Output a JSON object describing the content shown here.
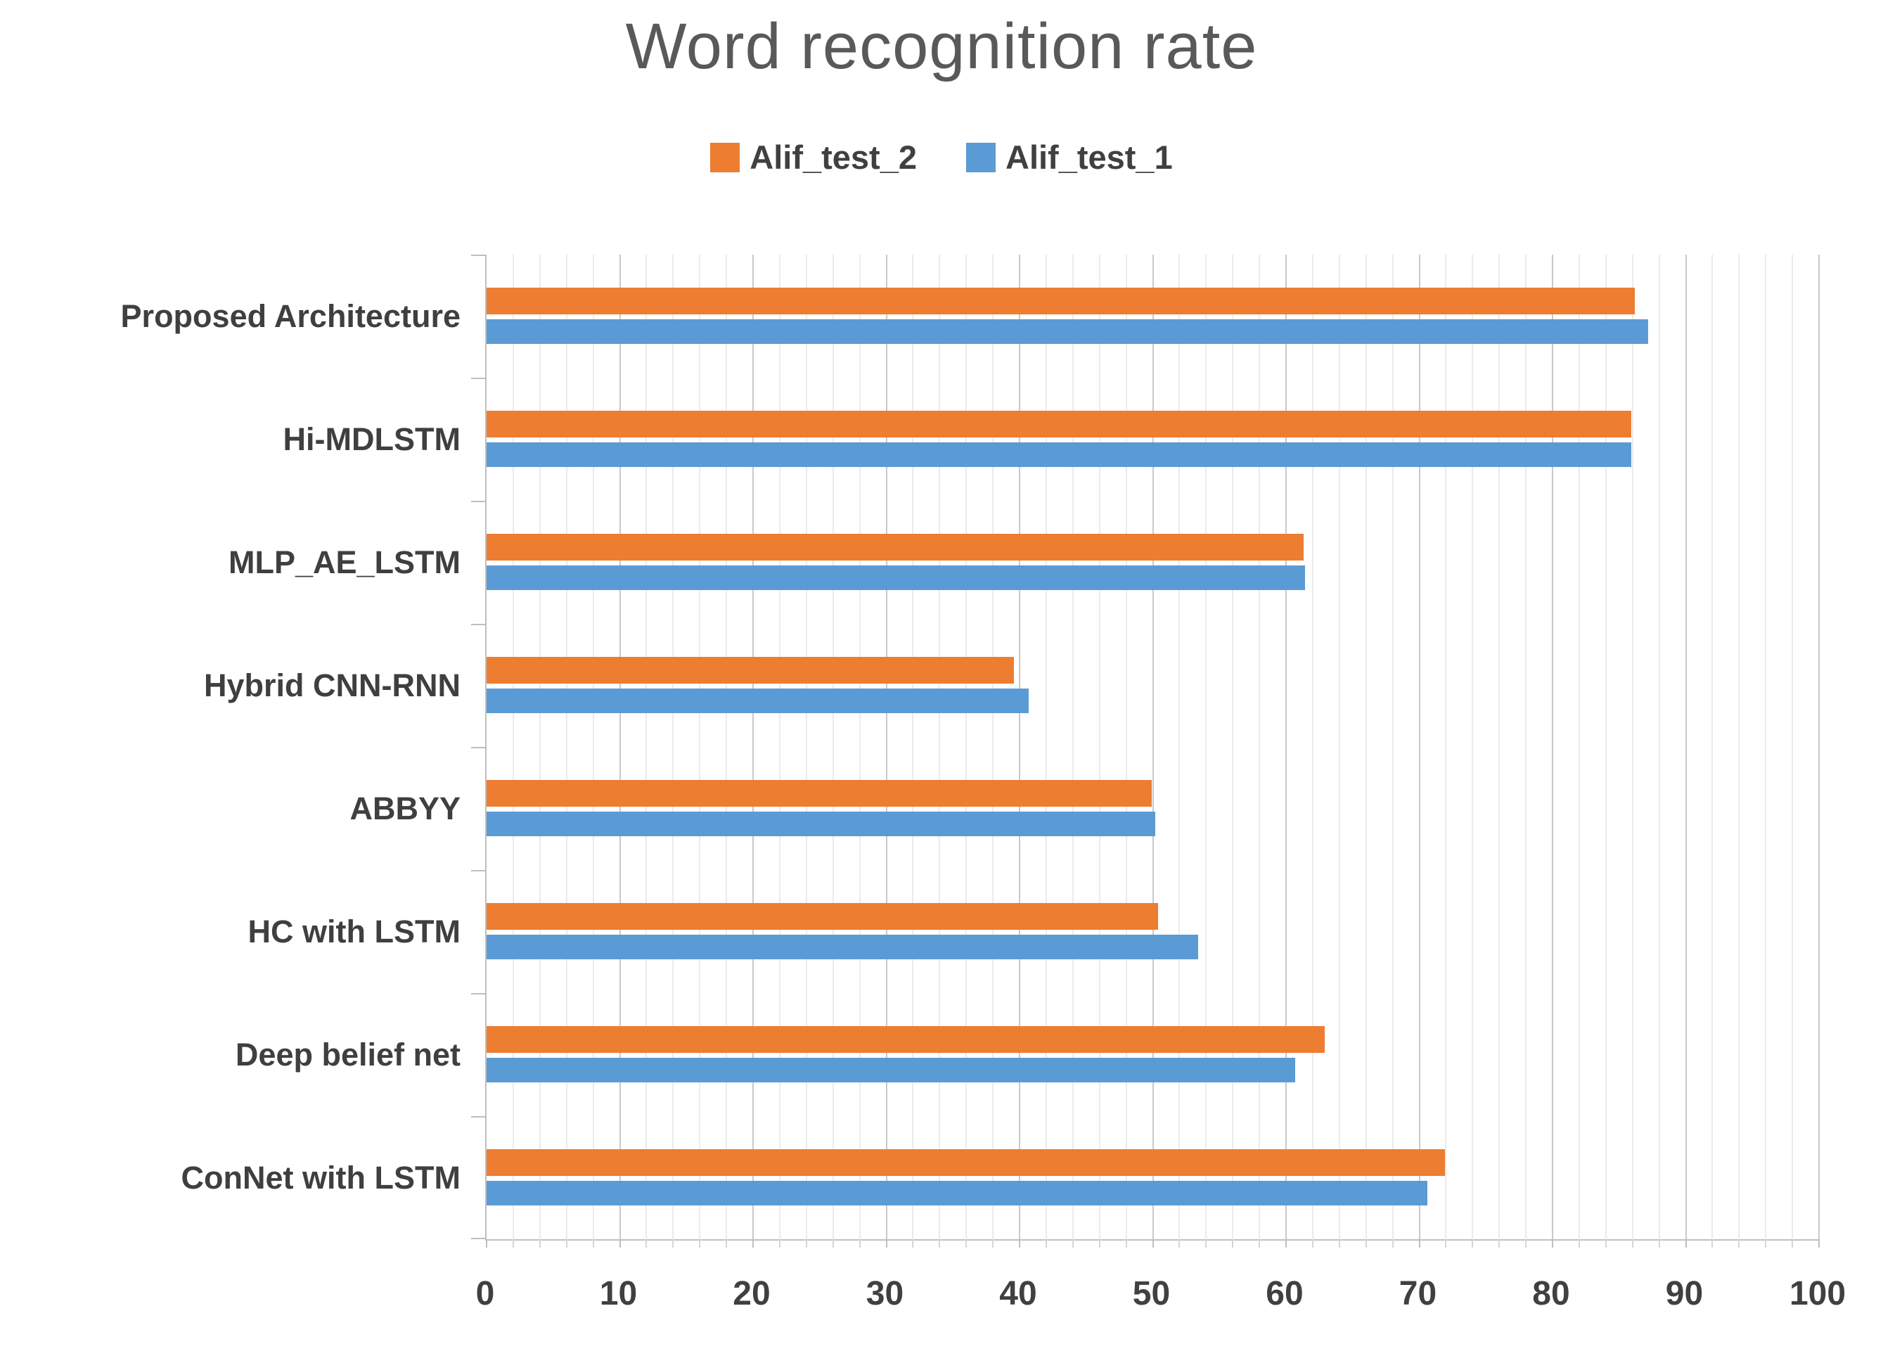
{
  "chart_data": {
    "type": "bar",
    "orientation": "horizontal",
    "title": "Word recognition rate",
    "categories": [
      "Proposed Architecture",
      "Hi-MDLSTM",
      "MLP_AE_LSTM",
      "Hybrid CNN-RNN",
      "ABBYY",
      "HC with LSTM",
      "Deep belief net",
      "ConNet with LSTM"
    ],
    "series": [
      {
        "name": "Alif_test_2",
        "color": "#ED7D31",
        "values": [
          86.2,
          85.9,
          61.3,
          39.6,
          49.9,
          50.4,
          62.9,
          71.9
        ]
      },
      {
        "name": "Alif_test_1",
        "color": "#5B9BD5",
        "values": [
          87.2,
          85.9,
          61.4,
          40.7,
          50.2,
          53.4,
          60.7,
          70.6
        ]
      }
    ],
    "xlim": [
      0,
      100
    ],
    "x_major_ticks": [
      0,
      10,
      20,
      30,
      40,
      50,
      60,
      70,
      80,
      90,
      100
    ],
    "x_minor_step": 2,
    "legend_position": "top",
    "grid": "vertical-minor-and-major",
    "ylabel": "",
    "xlabel": ""
  },
  "colors": {
    "series_2_orange": "#ED7D31",
    "series_1_blue": "#5B9BD5",
    "title_text": "#595959",
    "label_text": "#404040",
    "axis_line": "#BFBFBF",
    "major_grid": "#C9C9C9",
    "minor_grid": "#EBEBEB",
    "background": "#FFFFFF"
  }
}
